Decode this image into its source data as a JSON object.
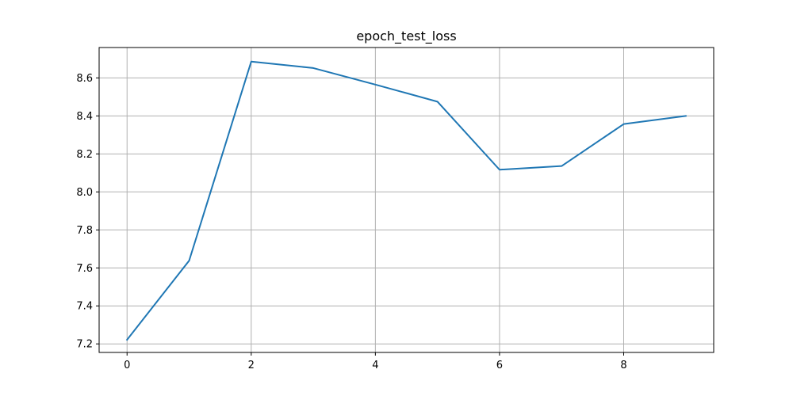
{
  "chart_data": {
    "type": "line",
    "title": "epoch_test_loss",
    "xlabel": "",
    "ylabel": "",
    "x": [
      0,
      1,
      2,
      3,
      4,
      5,
      6,
      7,
      8,
      9
    ],
    "series": [
      {
        "values": [
          7.222,
          7.638,
          8.686,
          8.652,
          8.565,
          8.475,
          8.117,
          8.136,
          8.357,
          8.4
        ],
        "color": "#1f77b4"
      }
    ],
    "xlim": [
      -0.45,
      9.45
    ],
    "ylim": [
      7.155,
      8.76
    ],
    "xticks": [
      0,
      2,
      4,
      6,
      8
    ],
    "xtick_labels": [
      "0",
      "2",
      "4",
      "6",
      "8"
    ],
    "yticks": [
      7.2,
      7.4,
      7.6,
      7.8,
      8.0,
      8.2,
      8.4,
      8.6
    ],
    "ytick_labels": [
      "7.2",
      "7.4",
      "7.6",
      "7.8",
      "8.0",
      "8.2",
      "8.4",
      "8.6"
    ],
    "grid": true,
    "grid_color": "#b0b0b0",
    "legend": "none"
  }
}
